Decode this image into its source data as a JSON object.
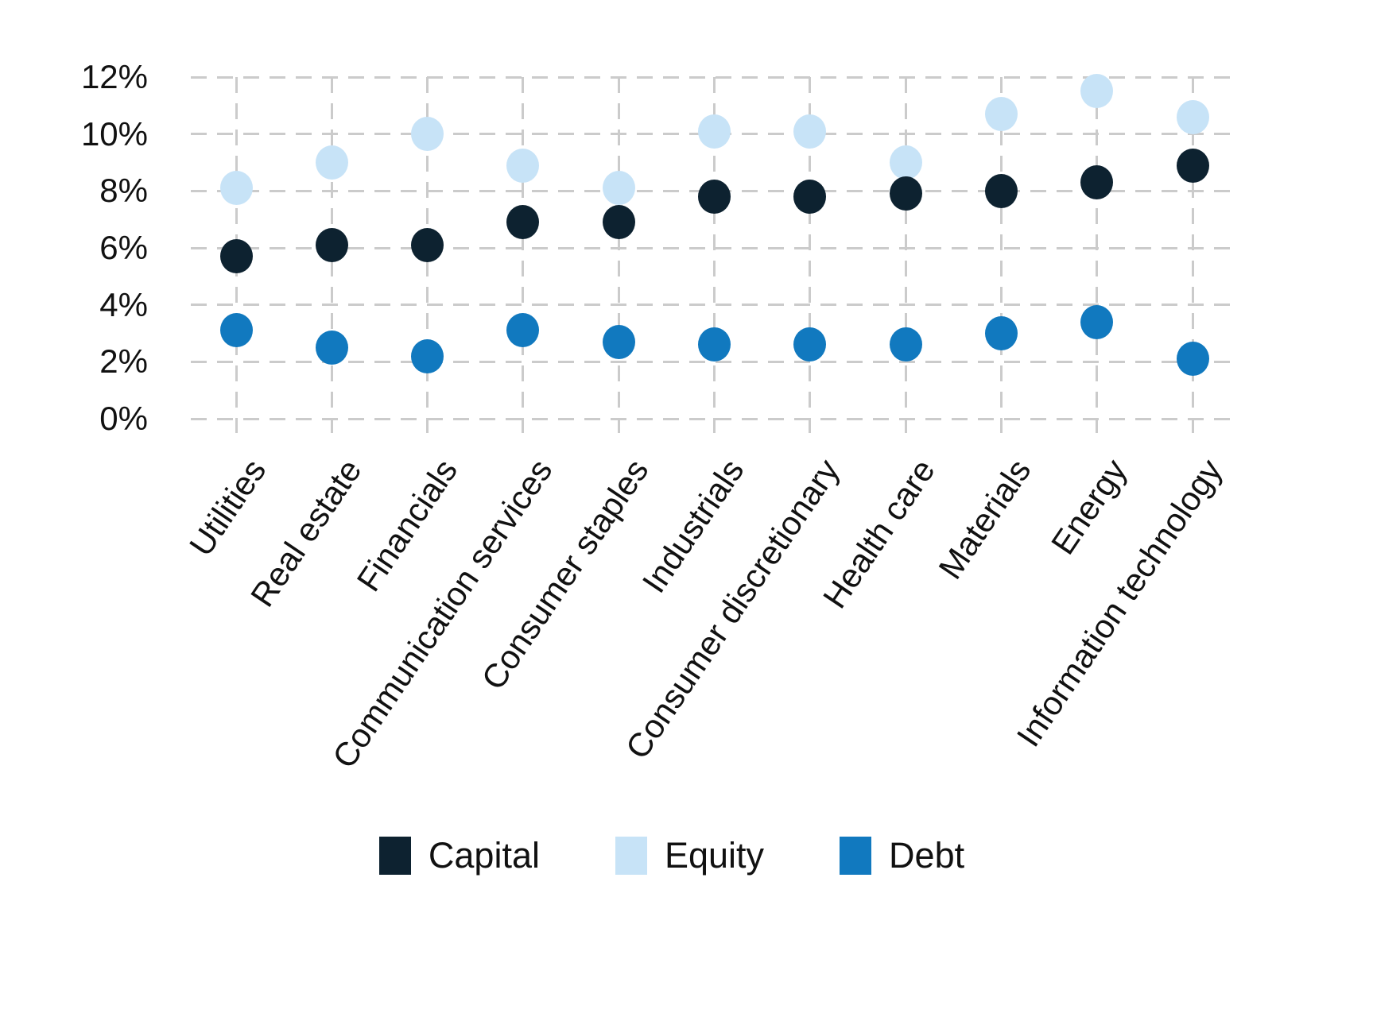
{
  "chart_data": {
    "type": "scatter",
    "title": "",
    "categories": [
      "Utilities",
      "Real estate",
      "Financials",
      "Communication services",
      "Consumer staples",
      "Industrials",
      "Consumer discretionary",
      "Health care",
      "Materials",
      "Energy",
      "Information technology"
    ],
    "series": [
      {
        "name": "Capital",
        "color": "#0d2230",
        "values": [
          5.7,
          6.1,
          6.1,
          6.9,
          6.9,
          7.8,
          7.8,
          7.9,
          8.0,
          8.3,
          8.9
        ]
      },
      {
        "name": "Equity",
        "color": "#c7e3f7",
        "values": [
          8.1,
          9.0,
          10.0,
          8.9,
          8.1,
          10.1,
          10.1,
          9.0,
          10.7,
          11.5,
          10.6
        ]
      },
      {
        "name": "Debt",
        "color": "#1179bf",
        "values": [
          3.1,
          2.5,
          2.2,
          3.1,
          2.7,
          2.6,
          2.6,
          2.6,
          3.0,
          3.4,
          2.1
        ]
      }
    ],
    "xlabel": "",
    "ylabel": "",
    "ylim": [
      0,
      12
    ],
    "ytick_values": [
      12,
      10,
      8,
      6,
      4,
      2,
      0
    ],
    "ytick_labels": [
      "12%",
      "10%",
      "8%",
      "6%",
      "4%",
      "2%",
      "0%"
    ],
    "grid": "dashed",
    "legend_position": "bottom",
    "marker": "circle"
  },
  "colors": {
    "background": "#ffffff",
    "gridline": "#cbcbcb",
    "text": "#111111"
  }
}
